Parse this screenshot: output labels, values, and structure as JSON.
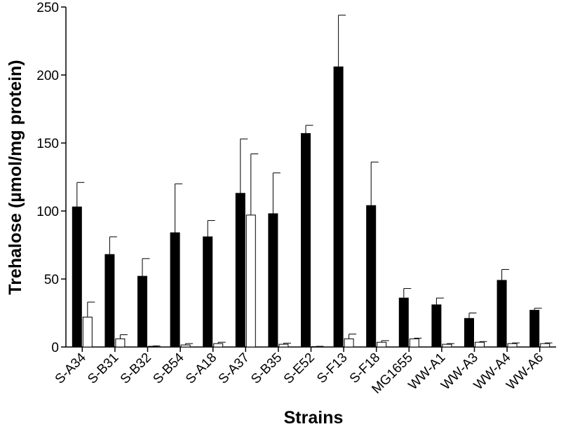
{
  "chart_data": {
    "type": "bar",
    "xlabel": "Strains",
    "ylabel": "Trehalose (µmol/mg protein)",
    "ylim": [
      0,
      250
    ],
    "yticks": [
      0,
      50,
      100,
      150,
      200,
      250
    ],
    "categories": [
      "S-A34",
      "S-B31",
      "S-B32",
      "S-B54",
      "S-A18",
      "S-A37",
      "S-B35",
      "S-E52",
      "S-F13",
      "S-F18",
      "MG1655",
      "WW-A1",
      "WW-A3",
      "WW-A4",
      "WW-A6"
    ],
    "series": [
      {
        "color": "#000000",
        "values": [
          103,
          68,
          52,
          84,
          81,
          113,
          98,
          157,
          206,
          104,
          36,
          31,
          21,
          49,
          27
        ],
        "errors": [
          18,
          13,
          13,
          36,
          12,
          40,
          30,
          6,
          38,
          32,
          7,
          5,
          4,
          8,
          1.5
        ]
      },
      {
        "color": "#ffffff",
        "values": [
          22,
          6,
          0.5,
          1.5,
          2.5,
          97,
          2,
          0.3,
          6,
          3.5,
          6,
          2,
          3.5,
          2.5,
          2.5
        ],
        "errors": [
          11,
          3,
          0.3,
          1,
          1,
          45,
          0.8,
          0.2,
          3.5,
          1.2,
          0.5,
          0.5,
          0.5,
          0.5,
          0.5
        ]
      }
    ]
  }
}
